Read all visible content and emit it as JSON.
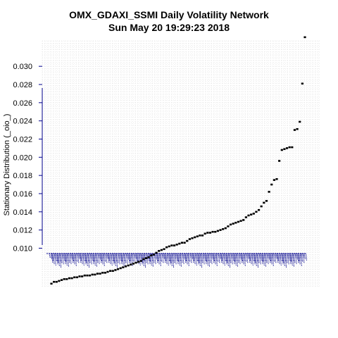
{
  "chart_data": {
    "type": "scatter",
    "title": "OMX_GDAXI_SSMI  Daily Volatility Network",
    "subtitle": "Sun May 20 19:29:23 2018",
    "xlabel": "",
    "ylabel": "Stationary Distribution (_oio_)",
    "yticks": [
      "0.010",
      "0.012",
      "0.014",
      "0.016",
      "0.018",
      "0.020",
      "0.022",
      "0.024",
      "0.026",
      "0.028",
      "0.030"
    ],
    "ytick_values": [
      0.01,
      0.012,
      0.014,
      0.016,
      0.018,
      0.02,
      0.022,
      0.024,
      0.026,
      0.028,
      0.03
    ],
    "ylim": [
      0.0057,
      0.0328
    ],
    "xlim": [
      1,
      100
    ],
    "grid": true,
    "series": [
      {
        "values": [
          0.0061,
          0.0063,
          0.0063,
          0.0064,
          0.0065,
          0.0066,
          0.0066,
          0.0067,
          0.0067,
          0.0068,
          0.0068,
          0.0069,
          0.0069,
          0.007,
          0.007,
          0.007,
          0.0071,
          0.0071,
          0.0072,
          0.0072,
          0.0073,
          0.0073,
          0.0074,
          0.0075,
          0.0075,
          0.0076,
          0.0077,
          0.0078,
          0.0079,
          0.008,
          0.0081,
          0.0082,
          0.0083,
          0.0084,
          0.0085,
          0.0086,
          0.0088,
          0.0089,
          0.009,
          0.0092,
          0.0093,
          0.0095,
          0.0097,
          0.0098,
          0.0099,
          0.0101,
          0.0102,
          0.0103,
          0.0103,
          0.0104,
          0.0105,
          0.0106,
          0.0106,
          0.0108,
          0.011,
          0.0111,
          0.0112,
          0.0113,
          0.0114,
          0.0114,
          0.0116,
          0.0117,
          0.0117,
          0.0118,
          0.0118,
          0.0119,
          0.012,
          0.0121,
          0.0122,
          0.0124,
          0.0126,
          0.0127,
          0.0128,
          0.0129,
          0.013,
          0.0131,
          0.0134,
          0.0136,
          0.0137,
          0.0138,
          0.014,
          0.0142,
          0.0146,
          0.015,
          0.0152,
          0.0162,
          0.017,
          0.0175,
          0.0176,
          0.0196,
          0.0208,
          0.0209,
          0.021,
          0.0211,
          0.0211,
          0.023,
          0.0231,
          0.0239,
          0.0281,
          0.0332
        ]
      }
    ],
    "colors": {
      "points": "#000000",
      "labels": "#00008b",
      "grid": "#d3d3d3",
      "axis": "#00008b"
    }
  }
}
